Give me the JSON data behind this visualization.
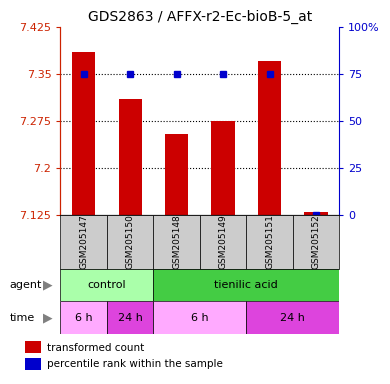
{
  "title": "GDS2863 / AFFX-r2-Ec-bioB-5_at",
  "samples": [
    "GSM205147",
    "GSM205150",
    "GSM205148",
    "GSM205149",
    "GSM205151",
    "GSM205152"
  ],
  "red_values": [
    7.385,
    7.31,
    7.255,
    7.275,
    7.37,
    7.13
  ],
  "blue_values": [
    75,
    75,
    75,
    75,
    75,
    0
  ],
  "ylim_left": [
    7.125,
    7.425
  ],
  "ylim_right": [
    0,
    100
  ],
  "yticks_left": [
    7.125,
    7.2,
    7.275,
    7.35,
    7.425
  ],
  "yticks_right": [
    0,
    25,
    50,
    75,
    100
  ],
  "bar_color": "#cc0000",
  "dot_color": "#0000cc",
  "bar_width": 0.5,
  "legend_red": "transformed count",
  "legend_blue": "percentile rank within the sample",
  "title_fontsize": 10,
  "tick_fontsize": 8,
  "label_fontsize": 8,
  "agent_control_color": "#aaffaa",
  "agent_tienilic_color": "#44cc44",
  "time_light_color": "#ffaaff",
  "time_dark_color": "#dd44dd",
  "sample_box_color": "#cccccc"
}
